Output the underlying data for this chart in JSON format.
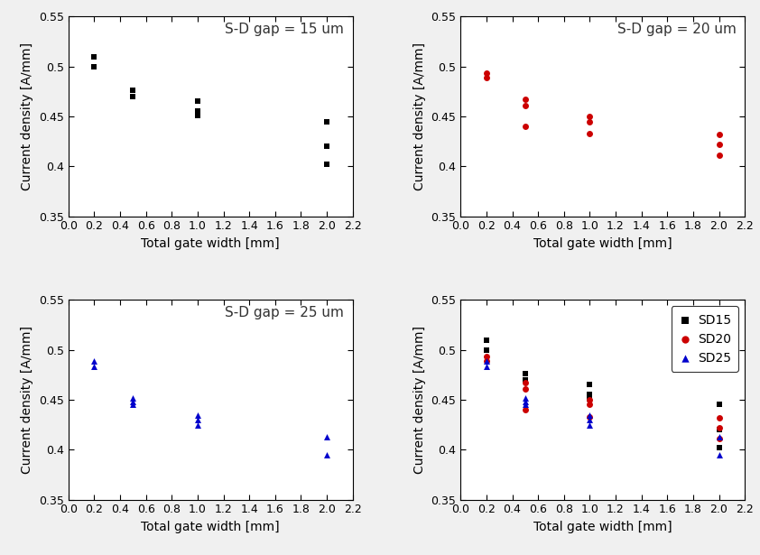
{
  "SD15": {
    "x": [
      0.2,
      0.2,
      0.5,
      0.5,
      1.0,
      1.0,
      1.0,
      2.0,
      2.0,
      2.0
    ],
    "y": [
      0.51,
      0.5,
      0.476,
      0.47,
      0.465,
      0.455,
      0.451,
      0.445,
      0.42,
      0.402
    ],
    "color": "#000000",
    "marker": "s",
    "label": "SD15",
    "title": "S-D gap = 15 um"
  },
  "SD20": {
    "x": [
      0.2,
      0.2,
      0.5,
      0.5,
      0.5,
      1.0,
      1.0,
      1.0,
      2.0,
      2.0,
      2.0
    ],
    "y": [
      0.493,
      0.489,
      0.467,
      0.461,
      0.44,
      0.45,
      0.445,
      0.433,
      0.432,
      0.422,
      0.411
    ],
    "color": "#cc0000",
    "marker": "o",
    "label": "SD20",
    "title": "S-D gap = 20 um"
  },
  "SD25": {
    "x": [
      0.2,
      0.2,
      0.5,
      0.5,
      0.5,
      1.0,
      1.0,
      1.0,
      2.0,
      2.0
    ],
    "y": [
      0.489,
      0.483,
      0.452,
      0.448,
      0.445,
      0.435,
      0.43,
      0.425,
      0.413,
      0.395
    ],
    "color": "#0000cc",
    "marker": "^",
    "label": "SD25",
    "title": "S-D gap = 25 um"
  },
  "xlim": [
    0.0,
    2.2
  ],
  "ylim": [
    0.35,
    0.55
  ],
  "xticks": [
    0.0,
    0.2,
    0.4,
    0.6,
    0.8,
    1.0,
    1.2,
    1.4,
    1.6,
    1.8,
    2.0,
    2.2
  ],
  "yticks": [
    0.35,
    0.4,
    0.45,
    0.5,
    0.55
  ],
  "xlabel": "Total gate width [mm]",
  "ylabel": "Current density [A/mm]",
  "markersize": 5,
  "tick_fontsize": 9,
  "label_fontsize": 10,
  "annotation_fontsize": 11,
  "fig_bg": "#f0f0f0",
  "ax_bg": "#ffffff"
}
